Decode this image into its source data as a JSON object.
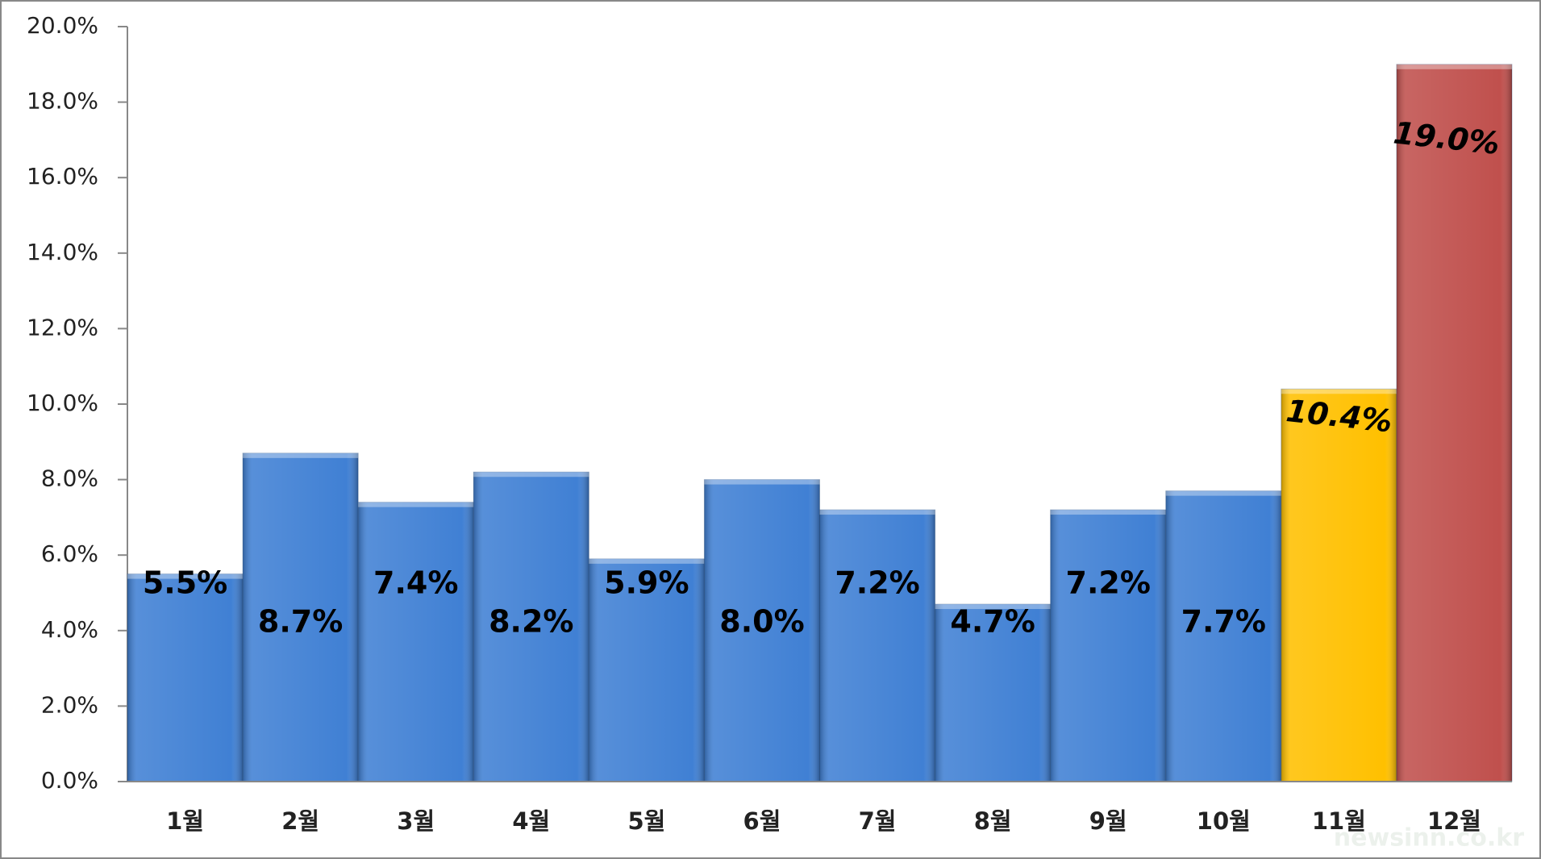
{
  "chart_data": {
    "type": "bar",
    "categories": [
      "1월",
      "2월",
      "3월",
      "4월",
      "5월",
      "6월",
      "7월",
      "8월",
      "9월",
      "10월",
      "11월",
      "12월"
    ],
    "values": [
      5.5,
      8.7,
      7.4,
      8.2,
      5.9,
      8.0,
      7.2,
      4.7,
      7.2,
      7.7,
      10.4,
      19.0
    ],
    "value_labels": [
      "5.5%",
      "8.7%",
      "7.4%",
      "8.2%",
      "5.9%",
      "8.0%",
      "7.2%",
      "4.7%",
      "7.2%",
      "7.7%",
      "10.4%",
      "19.0%"
    ],
    "colors": [
      "#4080d4",
      "#4080d4",
      "#4080d4",
      "#4080d4",
      "#4080d4",
      "#4080d4",
      "#4080d4",
      "#4080d4",
      "#4080d4",
      "#4080d4",
      "#ffc000",
      "#c0504d"
    ],
    "ylim": [
      0,
      20
    ],
    "yticks": [
      {
        "value": 0,
        "label": "0.0%"
      },
      {
        "value": 2,
        "label": "2.0%"
      },
      {
        "value": 4,
        "label": "4.0%"
      },
      {
        "value": 6,
        "label": "6.0%"
      },
      {
        "value": 8,
        "label": "8.0%"
      },
      {
        "value": 10,
        "label": "10.0%"
      },
      {
        "value": 12,
        "label": "12.0%"
      },
      {
        "value": 14,
        "label": "14.0%"
      },
      {
        "value": 16,
        "label": "16.0%"
      },
      {
        "value": 18,
        "label": "18.0%"
      },
      {
        "value": 20,
        "label": "20.0%"
      }
    ],
    "watermark": "newsinn.co.kr"
  }
}
